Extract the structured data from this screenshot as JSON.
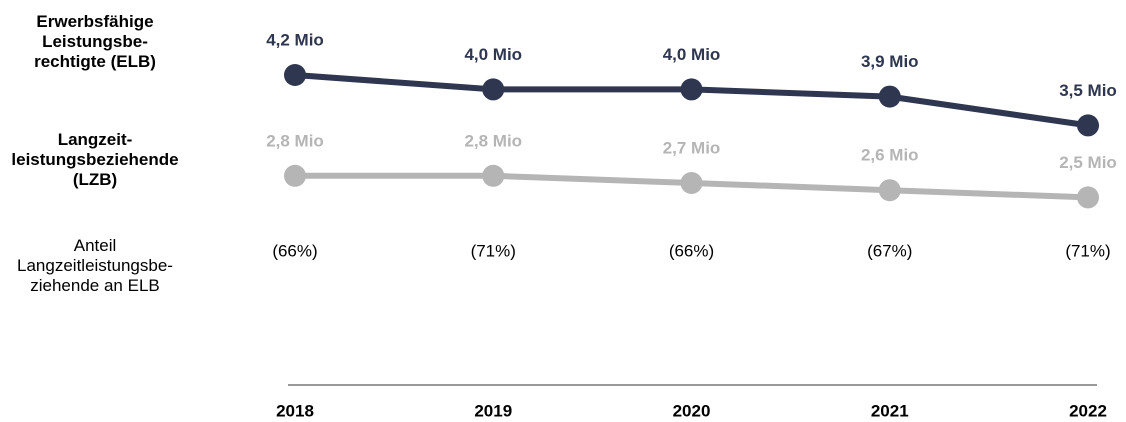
{
  "chart_data": {
    "type": "line",
    "categories": [
      "2018",
      "2019",
      "2020",
      "2021",
      "2022"
    ],
    "series": [
      {
        "name": "Erwerbsfähige\nLeistungsbe-\nrechtigte (ELB)",
        "color": "#2e3650",
        "values": [
          4.2,
          4.0,
          4.0,
          3.9,
          3.5
        ],
        "value_labels": [
          "4,2 Mio",
          "4,0 Mio",
          "4,0 Mio",
          "3,9 Mio",
          "3,5 Mio"
        ]
      },
      {
        "name": "Langzeit-\nleistungsbeziehende\n(LZB)",
        "color": "#b5b5b5",
        "values": [
          2.8,
          2.8,
          2.7,
          2.6,
          2.5
        ],
        "value_labels": [
          "2,8 Mio",
          "2,8 Mio",
          "2,7 Mio",
          "2,6 Mio",
          "2,5 Mio"
        ]
      }
    ],
    "share": {
      "name": "Anteil\nLangzeitleistungsbe-\nziehende an ELB",
      "values": [
        66,
        71,
        66,
        67,
        71
      ],
      "value_labels": [
        "(66%)",
        "(71%)",
        "(66%)",
        "(67%)",
        "(71%)"
      ]
    }
  }
}
